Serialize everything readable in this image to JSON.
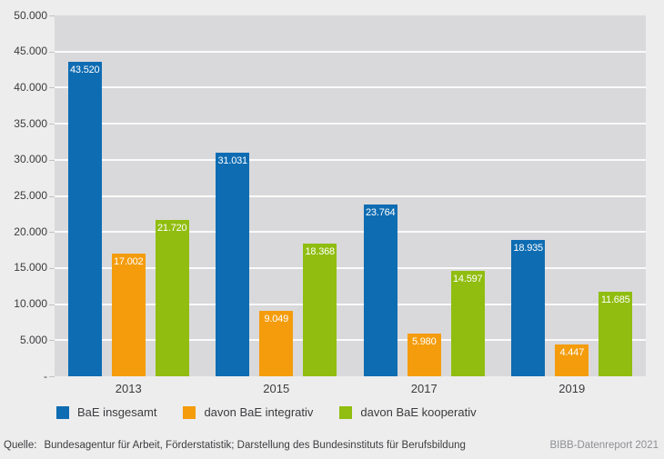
{
  "colors": {
    "blue": "#0e6cb2",
    "orange": "#f49c0c",
    "green": "#90bd0f",
    "plot_bg": "#d9d9db",
    "page_bg": "#ededee",
    "gridline": "#ffffff",
    "axis_text": "#3b3b3d",
    "muted_text": "#8e8f93"
  },
  "chart_data": {
    "type": "bar",
    "categories": [
      "2013",
      "2015",
      "2017",
      "2019"
    ],
    "series": [
      {
        "name": "BaE insgesamt",
        "color_key": "blue",
        "values": [
          43520,
          31031,
          23764,
          18935
        ],
        "labels": [
          "43.520",
          "31.031",
          "23.764",
          "18.935"
        ]
      },
      {
        "name": "davon BaE integrativ",
        "color_key": "orange",
        "values": [
          17002,
          9049,
          5980,
          4447
        ],
        "labels": [
          "17.002",
          "9.049",
          "5.980",
          "4.447"
        ]
      },
      {
        "name": "davon BaE kooperativ",
        "color_key": "green",
        "values": [
          21720,
          18368,
          14597,
          11685
        ],
        "labels": [
          "21.720",
          "18.368",
          "14.597",
          "11.685"
        ]
      }
    ],
    "title": "",
    "xlabel": "",
    "ylabel": "",
    "ylim": [
      0,
      50000
    ],
    "ytick_step": 5000,
    "ytick_labels": [
      "-",
      "5.000",
      "10.000",
      "15.000",
      "20.000",
      "25.000",
      "30.000",
      "35.000",
      "40.000",
      "45.000",
      "50.000"
    ],
    "grid": true,
    "legend_position": "bottom"
  },
  "footer": {
    "source_label": "Quelle:",
    "source_text": "Bundesagentur für Arbeit, Förderstatistik; Darstellung des Bundesinstituts für Berufsbildung",
    "report_label": "BIBB-Datenreport 2021"
  }
}
